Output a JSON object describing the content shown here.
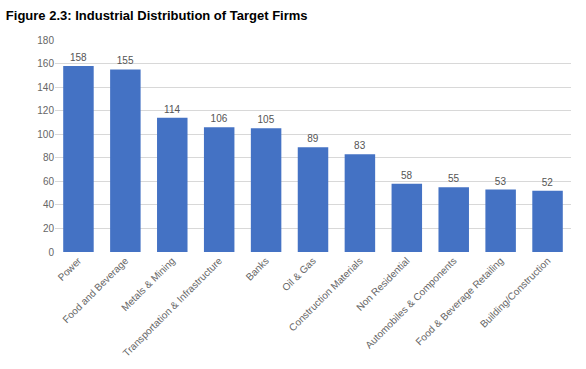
{
  "chart_data": {
    "type": "bar",
    "title": "Figure 2.3: Industrial Distribution of Target Firms",
    "categories": [
      "Power",
      "Food and Beverage",
      "Metals & Mining",
      "Transportation & Infrastructure",
      "Banks",
      "Oil & Gas",
      "Construction Materials",
      "Non Residential",
      "Automobiles & Components",
      "Food & Beverage Retailing",
      "Building/Construction"
    ],
    "values": [
      158,
      155,
      114,
      106,
      105,
      89,
      83,
      58,
      55,
      53,
      52
    ],
    "color": "#4472C4",
    "ylim": [
      0,
      180
    ],
    "yticks": [
      0,
      20,
      40,
      60,
      80,
      100,
      120,
      140,
      160,
      180
    ],
    "grid": true,
    "data_labels": true
  }
}
